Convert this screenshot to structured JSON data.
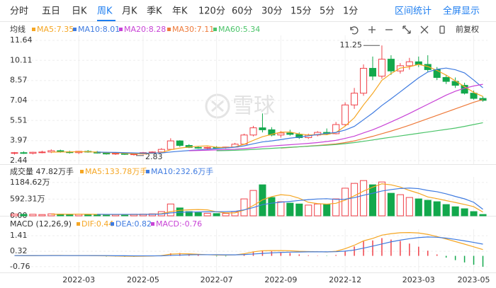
{
  "toolbar": {
    "tabs": [
      {
        "label": "分时"
      },
      {
        "label": "五日"
      },
      {
        "label": "日K"
      },
      {
        "label": "周K",
        "active": true
      },
      {
        "label": "月K"
      },
      {
        "label": "季K"
      },
      {
        "label": "年K"
      },
      {
        "label": "120分"
      },
      {
        "label": "60分"
      },
      {
        "label": "30分"
      },
      {
        "label": "15分"
      },
      {
        "label": "5分"
      },
      {
        "label": "1分"
      }
    ],
    "actions": [
      "区间统计",
      "全屏显示"
    ],
    "price_adjust": "前复权"
  },
  "watermark": "雪球",
  "chart_data": [
    {
      "type": "candlestick",
      "title": "均线",
      "up_color": "#f0424a",
      "down_color": "#12a84c",
      "open": [
        3.0,
        3.05,
        3.0,
        3.08,
        3.1,
        3.2,
        3.12,
        3.05,
        3.15,
        3.1,
        3.02,
        2.95,
        3.0,
        2.92,
        2.95,
        3.05,
        3.1,
        3.3,
        3.95,
        3.6,
        3.45,
        3.4,
        3.45,
        3.42,
        3.48,
        3.7,
        4.4,
        4.95,
        4.8,
        4.4,
        4.55,
        4.45,
        4.2,
        4.4,
        4.6,
        4.5,
        5.2,
        6.7,
        7.6,
        9.5,
        8.9,
        10.2,
        9.3,
        9.7,
        10.0,
        9.8,
        9.4,
        8.8,
        8.5,
        8.2,
        7.6,
        7.2
      ],
      "high": [
        3.1,
        3.15,
        3.12,
        3.2,
        3.3,
        3.28,
        3.2,
        3.18,
        3.25,
        3.18,
        3.1,
        3.05,
        3.05,
        3.0,
        3.1,
        3.15,
        3.4,
        4.15,
        4.0,
        3.7,
        3.55,
        3.5,
        3.55,
        3.5,
        3.8,
        4.5,
        5.1,
        6.05,
        5.0,
        4.7,
        4.8,
        4.6,
        4.5,
        4.7,
        4.9,
        5.4,
        6.9,
        8.0,
        9.8,
        10.4,
        11.25,
        10.5,
        9.9,
        10.3,
        10.4,
        10.5,
        9.6,
        9.0,
        8.8,
        8.4,
        7.8,
        7.35
      ],
      "low": [
        2.9,
        2.95,
        2.92,
        3.0,
        3.02,
        3.05,
        2.98,
        2.95,
        3.05,
        2.98,
        2.9,
        2.88,
        2.88,
        2.83,
        2.9,
        3.0,
        3.05,
        3.25,
        3.5,
        3.4,
        3.35,
        3.32,
        3.38,
        3.35,
        3.45,
        3.65,
        4.3,
        4.6,
        4.3,
        4.2,
        4.35,
        4.1,
        4.1,
        4.3,
        4.4,
        4.45,
        5.1,
        6.4,
        7.4,
        8.6,
        8.7,
        9.0,
        9.1,
        9.4,
        9.6,
        9.2,
        8.6,
        8.3,
        8.0,
        7.5,
        7.1,
        6.95
      ],
      "close": [
        3.05,
        3.0,
        3.08,
        3.1,
        3.2,
        3.12,
        3.05,
        3.15,
        3.1,
        3.02,
        2.95,
        3.0,
        2.92,
        2.95,
        3.05,
        3.1,
        3.3,
        3.95,
        3.6,
        3.45,
        3.4,
        3.45,
        3.42,
        3.48,
        3.7,
        4.4,
        4.95,
        4.8,
        4.4,
        4.55,
        4.45,
        4.2,
        4.4,
        4.6,
        4.5,
        5.2,
        6.7,
        7.6,
        9.5,
        8.9,
        10.2,
        9.3,
        9.7,
        10.0,
        9.8,
        9.4,
        8.8,
        8.5,
        8.2,
        7.6,
        7.2,
        7.05
      ],
      "series": [
        {
          "name": "MA5:7.35",
          "color": "#f5a623",
          "values": [
            null,
            null,
            null,
            null,
            3.09,
            3.1,
            3.11,
            3.12,
            3.12,
            3.09,
            3.05,
            3.04,
            3.0,
            2.97,
            2.97,
            3.0,
            3.06,
            3.27,
            3.4,
            3.48,
            3.54,
            3.57,
            3.46,
            3.44,
            3.49,
            3.69,
            3.99,
            4.27,
            4.45,
            4.62,
            4.63,
            4.48,
            4.4,
            4.44,
            4.43,
            4.59,
            5.08,
            5.72,
            6.7,
            7.58,
            8.58,
            9.1,
            9.52,
            9.62,
            9.8,
            9.64,
            9.34,
            8.98,
            8.54,
            8.1,
            7.66,
            7.35
          ]
        },
        {
          "name": "MA10:8.01",
          "color": "#3f7be0",
          "values": [
            null,
            null,
            null,
            null,
            null,
            null,
            null,
            null,
            null,
            3.09,
            3.08,
            3.07,
            3.05,
            3.03,
            3.01,
            3.02,
            3.03,
            3.1,
            3.16,
            3.21,
            3.27,
            3.31,
            3.36,
            3.41,
            3.47,
            3.57,
            3.73,
            3.87,
            3.95,
            4.05,
            4.16,
            4.24,
            4.33,
            4.44,
            4.52,
            4.6,
            4.78,
            5.06,
            5.57,
            6.08,
            6.66,
            7.17,
            7.7,
            8.24,
            8.77,
            9.22,
            9.43,
            9.52,
            9.39,
            9.15,
            8.6,
            8.01
          ]
        },
        {
          "name": "MA20:8.28",
          "color": "#c843d6",
          "values": [
            null,
            null,
            null,
            null,
            null,
            null,
            null,
            null,
            null,
            null,
            null,
            null,
            null,
            null,
            null,
            null,
            null,
            null,
            null,
            3.2,
            3.22,
            3.24,
            3.26,
            3.28,
            3.31,
            3.36,
            3.42,
            3.5,
            3.56,
            3.61,
            3.66,
            3.71,
            3.76,
            3.82,
            3.9,
            3.99,
            4.14,
            4.31,
            4.56,
            4.8,
            5.09,
            5.4,
            5.72,
            6.05,
            6.4,
            6.75,
            7.1,
            7.45,
            7.75,
            7.98,
            8.15,
            8.28
          ]
        },
        {
          "name": "MA30:7.11",
          "color": "#ee7a3a",
          "values": [
            null,
            null,
            null,
            null,
            null,
            null,
            null,
            null,
            null,
            null,
            null,
            null,
            null,
            null,
            null,
            null,
            null,
            null,
            null,
            null,
            null,
            null,
            null,
            null,
            null,
            null,
            null,
            null,
            null,
            3.4,
            3.45,
            3.5,
            3.55,
            3.6,
            3.66,
            3.72,
            3.82,
            3.95,
            4.12,
            4.3,
            4.5,
            4.7,
            4.92,
            5.15,
            5.4,
            5.65,
            5.9,
            6.15,
            6.4,
            6.65,
            6.9,
            7.11
          ]
        },
        {
          "name": "MA60:5.34",
          "color": "#4cc46a",
          "values": [
            null,
            null,
            null,
            null,
            null,
            null,
            null,
            null,
            null,
            null,
            null,
            null,
            null,
            null,
            null,
            null,
            null,
            null,
            null,
            null,
            null,
            null,
            3.2,
            3.21,
            3.23,
            3.26,
            3.3,
            3.34,
            3.38,
            3.42,
            3.46,
            3.5,
            3.54,
            3.58,
            3.62,
            3.67,
            3.74,
            3.82,
            3.92,
            4.02,
            4.13,
            4.23,
            4.33,
            4.43,
            4.53,
            4.63,
            4.73,
            4.83,
            4.93,
            5.06,
            5.2,
            5.34
          ]
        }
      ],
      "ylim": [
        2.17,
        12.02
      ],
      "yticks": [
        11.64,
        10.11,
        8.57,
        7.04,
        5.51,
        3.97,
        2.44
      ],
      "grid": true
    },
    {
      "type": "bar",
      "title": "成交量 47.82万手",
      "values": [
        60,
        50,
        55,
        45,
        70,
        60,
        50,
        55,
        50,
        45,
        40,
        45,
        50,
        55,
        60,
        70,
        150,
        420,
        280,
        150,
        110,
        90,
        80,
        85,
        150,
        600,
        900,
        1100,
        650,
        500,
        450,
        420,
        380,
        420,
        400,
        600,
        980,
        1150,
        1250,
        1100,
        1200,
        800,
        750,
        650,
        600,
        550,
        500,
        400,
        320,
        250,
        150,
        47.82
      ],
      "series": [
        {
          "name": "MA5:133.78万手",
          "color": "#f5a623",
          "values": [
            null,
            null,
            null,
            null,
            56,
            56,
            58,
            58,
            57,
            52,
            48,
            47,
            46,
            47,
            50,
            56,
            77,
            151,
            196,
            214,
            222,
            210,
            142,
            103,
            103,
            201,
            363,
            567,
            680,
            750,
            720,
            624,
            480,
            434,
            414,
            444,
            556,
            710,
            876,
            1016,
            1136,
            1100,
            1020,
            900,
            800,
            670,
            610,
            540,
            474,
            404,
            324,
            133.78
          ]
        },
        {
          "name": "MA10:232.6万手",
          "color": "#3f7be0",
          "values": [
            null,
            null,
            null,
            null,
            null,
            null,
            null,
            null,
            null,
            55,
            52,
            52,
            52,
            52,
            52,
            54,
            62,
            104,
            126,
            133,
            139,
            144,
            146,
            149,
            159,
            212,
            294,
            396,
            450,
            483,
            511,
            544,
            574,
            597,
            607,
            582,
            590,
            644,
            730,
            800,
            880,
            930,
            970,
            985,
            965,
            900,
            855,
            780,
            687,
            602,
            480,
            232.6
          ]
        }
      ],
      "ylim": [
        0,
        1380
      ],
      "yticks": [
        {
          "value": 1184.62,
          "label": "1184.62万"
        },
        {
          "value": 592.31,
          "label": "592.31万"
        },
        {
          "value": 0,
          "label": "0.00"
        }
      ],
      "grid": true
    },
    {
      "type": "macd",
      "title": "MACD (12,26,9)",
      "categories": [
        null,
        null,
        null,
        null,
        null,
        null,
        null,
        "2022-03",
        null,
        null,
        null,
        null,
        null,
        null,
        "2022-05",
        null,
        null,
        null,
        null,
        null,
        null,
        null,
        "2022-07",
        null,
        null,
        null,
        null,
        null,
        null,
        "2022-09",
        null,
        null,
        null,
        null,
        null,
        null,
        "2022-12",
        null,
        null,
        null,
        null,
        null,
        null,
        null,
        "2023-03",
        null,
        null,
        null,
        null,
        null,
        "2023-05",
        null
      ],
      "series": [
        {
          "name": "DIF:0.44",
          "color": "#f5a623",
          "values": [
            0.02,
            0.01,
            0.01,
            0.02,
            0.03,
            0.03,
            0.02,
            0.02,
            0.02,
            0.01,
            0.0,
            -0.01,
            -0.02,
            -0.03,
            -0.02,
            -0.01,
            0.02,
            0.12,
            0.15,
            0.14,
            0.11,
            0.08,
            0.06,
            0.05,
            0.07,
            0.15,
            0.28,
            0.36,
            0.37,
            0.37,
            0.36,
            0.32,
            0.3,
            0.29,
            0.27,
            0.32,
            0.5,
            0.74,
            1.05,
            1.22,
            1.45,
            1.55,
            1.62,
            1.63,
            1.6,
            1.5,
            1.35,
            1.18,
            1.0,
            0.82,
            0.63,
            0.44
          ]
        },
        {
          "name": "DEA:0.82",
          "color": "#3f7be0",
          "values": [
            0.02,
            0.02,
            0.02,
            0.02,
            0.02,
            0.02,
            0.02,
            0.02,
            0.02,
            0.02,
            0.02,
            0.01,
            0.01,
            0.0,
            0.0,
            0.0,
            0.0,
            0.03,
            0.05,
            0.07,
            0.08,
            0.08,
            0.08,
            0.07,
            0.07,
            0.09,
            0.13,
            0.17,
            0.21,
            0.24,
            0.26,
            0.27,
            0.28,
            0.28,
            0.28,
            0.29,
            0.33,
            0.41,
            0.54,
            0.68,
            0.83,
            0.98,
            1.1,
            1.2,
            1.28,
            1.32,
            1.3,
            1.24,
            1.15,
            1.05,
            0.94,
            0.82
          ]
        },
        {
          "name": "MACD:-0.76",
          "color": "#c843d6",
          "histogram": true,
          "values": [
            0,
            -0.02,
            -0.02,
            0,
            0.02,
            0.02,
            0,
            0,
            0,
            -0.02,
            -0.04,
            -0.04,
            -0.06,
            -0.06,
            -0.04,
            -0.02,
            0.04,
            0.18,
            0.2,
            0.14,
            0.06,
            0,
            -0.04,
            -0.04,
            0,
            0.12,
            0.3,
            0.38,
            0.32,
            0.26,
            0.2,
            0.1,
            0.04,
            0.02,
            -0.02,
            0.06,
            0.34,
            0.66,
            1.02,
            1.08,
            1.24,
            1.14,
            1.04,
            0.86,
            0.64,
            0.36,
            0.1,
            -0.12,
            -0.3,
            -0.46,
            -0.62,
            -0.76
          ]
        }
      ],
      "ylim": [
        -1.16,
        1.86
      ],
      "yticks": [
        1.41,
        0.32,
        -0.76
      ],
      "grid": true
    }
  ]
}
